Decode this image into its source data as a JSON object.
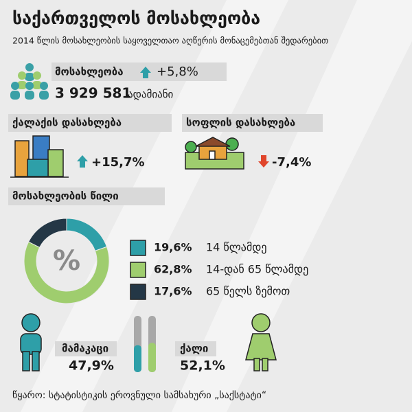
{
  "header": {
    "title": "საქართველოს მოსახლეობა",
    "subtitle": "2014 წლის მოსახლეობის საყოველთაო აღწერის მონაცემებთან შედარებით"
  },
  "population": {
    "label": "მოსახლეობა",
    "change": "+5,8%",
    "count": "3 929 581",
    "unit": "ადამიანი"
  },
  "urban": {
    "label": "ქალაქის დასახლება",
    "change": "+15,7%"
  },
  "rural": {
    "label": "სოფლის დასახლება",
    "change": "-7,4%"
  },
  "age_section": {
    "label": "მოსახლეობის წილი"
  },
  "chart_data": {
    "type": "donut",
    "center_label": "%",
    "categories": [
      "14 წლამდე",
      "14-დან 65 წლამდე",
      "65 წელს ზემოთ"
    ],
    "values": [
      19.6,
      62.8,
      17.6
    ],
    "value_labels": [
      "19,6%",
      "62,8%",
      "17,6%"
    ],
    "colors": [
      "#2e9fa8",
      "#9fcd6e",
      "#243746"
    ]
  },
  "gender": {
    "male": {
      "label": "მამაკაცი",
      "value": 47.9,
      "value_label": "47,9%",
      "color": "#2e9fa8"
    },
    "female": {
      "label": "ქალი",
      "value": 52.1,
      "value_label": "52,1%",
      "color": "#9fcd6e"
    }
  },
  "source": "წყარო: სტატისტიკის ეროვნული სამსახური „საქსტატი“"
}
